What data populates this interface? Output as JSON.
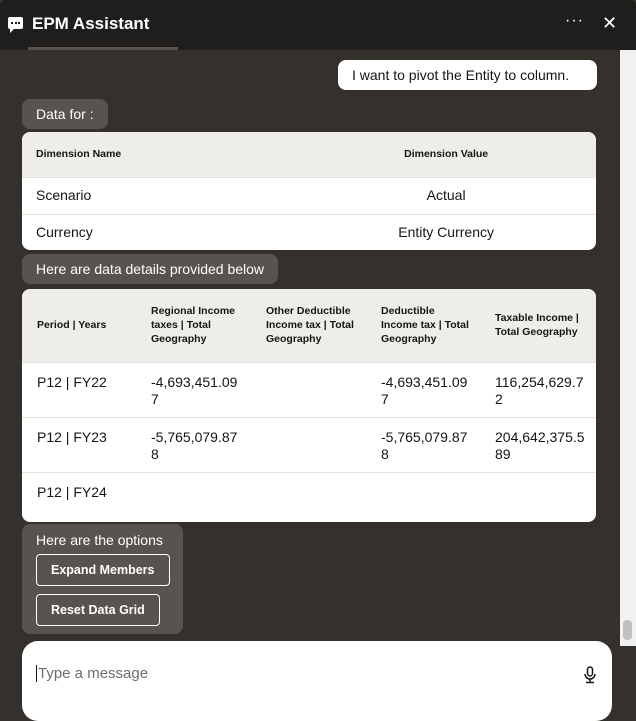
{
  "header": {
    "title": "EPM Assistant",
    "more_icon": "ellipsis-icon",
    "close_icon": "close-icon",
    "more": "···",
    "close": "✕"
  },
  "messages": {
    "user": "I want to pivot the Entity to column.",
    "data_for": "Data for :",
    "details": "Here are data details provided below",
    "options": "Here are the options"
  },
  "dimensions": {
    "headers": [
      "Dimension Name",
      "Dimension Value"
    ],
    "rows": [
      [
        "Scenario",
        "Actual"
      ],
      [
        "Currency",
        "Entity Currency"
      ]
    ]
  },
  "data_grid": {
    "headers": [
      "Period | Years",
      "Regional Income taxes | Total Geography",
      "Other Deductible Income tax | Total Geography",
      "Deductible Income tax | Total Geography",
      "Taxable Income | Total Geography"
    ],
    "rows": [
      [
        "P12 | FY22",
        "-4,693,451.097",
        "",
        "-4,693,451.097",
        "116,254,629.72"
      ],
      [
        "P12 | FY23",
        "-5,765,079.878",
        "",
        "-5,765,079.878",
        "204,642,375.589"
      ],
      [
        "P12 | FY24",
        "",
        "",
        "",
        ""
      ]
    ]
  },
  "buttons": {
    "expand": "Expand Members",
    "reset": "Reset Data Grid"
  },
  "composer": {
    "placeholder": "Type a message",
    "mic_icon": "microphone-icon"
  }
}
